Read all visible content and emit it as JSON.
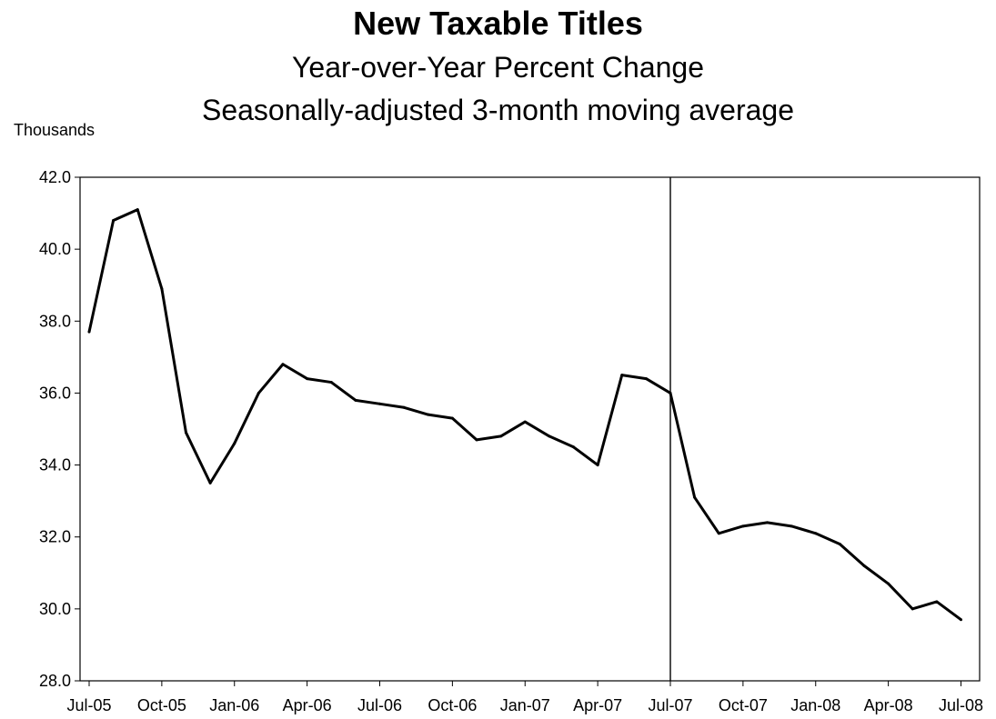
{
  "chart_data": {
    "type": "line",
    "title": "New Taxable Titles",
    "subtitle": [
      "Year-over-Year Percent Change",
      "Seasonally-adjusted 3-month moving average"
    ],
    "unit_label": "Thousands",
    "xlabel": "",
    "ylabel": "",
    "ylim": [
      28.0,
      42.0
    ],
    "yticks": [
      "28.0",
      "30.0",
      "32.0",
      "34.0",
      "36.0",
      "38.0",
      "40.0",
      "42.0"
    ],
    "xticks": [
      "Jul-05",
      "Oct-05",
      "Jan-06",
      "Apr-06",
      "Jul-06",
      "Oct-06",
      "Jan-07",
      "Apr-07",
      "Jul-07",
      "Oct-07",
      "Jan-08",
      "Apr-08",
      "Jul-08"
    ],
    "x_start": "Jul-05",
    "x": [
      "Jul-05",
      "Aug-05",
      "Sep-05",
      "Oct-05",
      "Nov-05",
      "Dec-05",
      "Jan-06",
      "Feb-06",
      "Mar-06",
      "Apr-06",
      "May-06",
      "Jun-06",
      "Jul-06",
      "Aug-06",
      "Sep-06",
      "Oct-06",
      "Nov-06",
      "Dec-06",
      "Jan-07",
      "Feb-07",
      "Mar-07",
      "Apr-07",
      "May-07",
      "Jun-07",
      "Jul-07",
      "Aug-07",
      "Sep-07",
      "Oct-07",
      "Nov-07",
      "Dec-07",
      "Jan-08",
      "Feb-08",
      "Mar-08",
      "Apr-08",
      "May-08",
      "Jun-08",
      "Jul-08"
    ],
    "series": [
      {
        "values": [
          37.7,
          40.8,
          41.1,
          38.9,
          34.9,
          33.5,
          34.6,
          36.0,
          36.8,
          36.4,
          36.3,
          35.8,
          35.7,
          35.6,
          35.4,
          35.3,
          34.7,
          34.8,
          35.2,
          34.8,
          34.5,
          34.0,
          36.5,
          36.4,
          36.0,
          33.1,
          32.1,
          32.3,
          32.4,
          32.3,
          32.1,
          31.8,
          31.2,
          30.7,
          30.0,
          30.2,
          29.7
        ]
      }
    ],
    "vertical_line_at": "Jul-07",
    "grid": false,
    "legend": "none"
  }
}
